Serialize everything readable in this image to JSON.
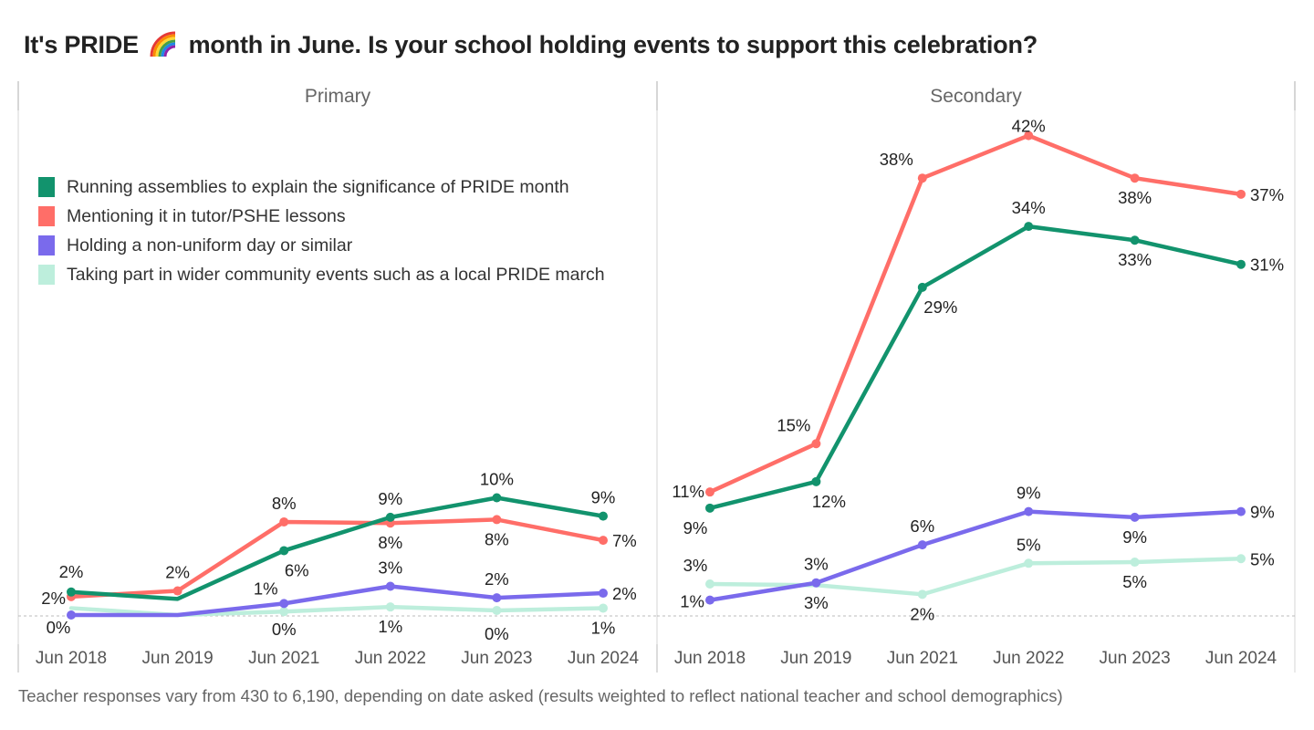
{
  "title": {
    "before": "It's PRIDE",
    "icon": "rainbow-icon",
    "after": "month in June. Is your school holding events to support this celebration?"
  },
  "footer": "Teacher responses vary from 430 to 6,190, depending on date asked (results weighted to reflect national teacher and school demographics)",
  "colors": {
    "assemblies": "#12936d",
    "lessons": "#ff6e68",
    "non_uniform": "#7a6aec",
    "community": "#bdeedc"
  },
  "legend": [
    {
      "key": "assemblies",
      "label": "Running assemblies to explain the significance of PRIDE month"
    },
    {
      "key": "lessons",
      "label": "Mentioning it in tutor/PSHE lessons"
    },
    {
      "key": "non_uniform",
      "label": "Holding a non-uniform day or similar"
    },
    {
      "key": "community",
      "label": "Taking part in wider community events such as a local PRIDE march"
    }
  ],
  "chart_data": [
    {
      "type": "line",
      "title": "Primary",
      "xlabel": "",
      "ylabel": "",
      "categories": [
        "Jun 2018",
        "Jun 2019",
        "Jun 2021",
        "Jun 2022",
        "Jun 2023",
        "Jun 2024"
      ],
      "ylim": [
        0,
        45
      ],
      "grid": false,
      "legend_position": "top-left",
      "series": [
        {
          "key": "assemblies",
          "name": "Running assemblies to explain the significance of PRIDE month",
          "values": [
            2.0,
            1.4,
            5.6,
            8.5,
            10.2,
            8.6
          ],
          "labels": [
            "2%",
            null,
            "6%",
            "9%",
            "10%",
            "9%"
          ],
          "markers": [
            true,
            false,
            true,
            true,
            true,
            true
          ]
        },
        {
          "key": "lessons",
          "name": "Mentioning it in tutor/PSHE lessons",
          "values": [
            1.6,
            2.1,
            8.1,
            8.0,
            8.3,
            6.5
          ],
          "labels": [
            "2%",
            "2%",
            "8%",
            "8%",
            "8%",
            "7%"
          ],
          "markers": [
            true,
            true,
            true,
            true,
            true,
            true
          ]
        },
        {
          "key": "non_uniform",
          "name": "Holding a non-uniform day or similar",
          "values": [
            0.0,
            0.0,
            1.0,
            2.5,
            1.5,
            1.9
          ],
          "labels": [
            "0%",
            null,
            "1%",
            "3%",
            "2%",
            "2%"
          ],
          "markers": [
            true,
            false,
            true,
            true,
            true,
            true
          ]
        },
        {
          "key": "community",
          "name": "Taking part in wider community events such as a local PRIDE march",
          "values": [
            0.6,
            0.0,
            0.3,
            0.7,
            0.4,
            0.6
          ],
          "labels": [
            null,
            null,
            "0%",
            "1%",
            "0%",
            "1%"
          ],
          "markers": [
            false,
            false,
            true,
            true,
            true,
            true
          ]
        }
      ]
    },
    {
      "type": "line",
      "title": "Secondary",
      "xlabel": "",
      "ylabel": "",
      "categories": [
        "Jun 2018",
        "Jun 2019",
        "Jun 2021",
        "Jun 2022",
        "Jun 2023",
        "Jun 2024"
      ],
      "ylim": [
        0,
        45
      ],
      "grid": false,
      "series": [
        {
          "key": "assemblies",
          "name": "Running assemblies to explain the significance of PRIDE month",
          "values": [
            9.3,
            11.6,
            28.5,
            33.8,
            32.6,
            30.5
          ],
          "labels": [
            "9%",
            "12%",
            "29%",
            "34%",
            "33%",
            "31%"
          ],
          "markers": [
            true,
            true,
            true,
            true,
            true,
            true
          ]
        },
        {
          "key": "lessons",
          "name": "Mentioning it in tutor/PSHE lessons",
          "values": [
            10.7,
            14.9,
            38.0,
            41.7,
            38.0,
            36.6
          ],
          "labels": [
            "11%",
            "15%",
            "38%",
            "42%",
            "38%",
            "37%"
          ],
          "markers": [
            true,
            true,
            true,
            true,
            true,
            true
          ]
        },
        {
          "key": "non_uniform",
          "name": "Holding a non-uniform day or similar",
          "values": [
            1.3,
            2.8,
            6.1,
            9.0,
            8.5,
            9.0
          ],
          "labels": [
            "1%",
            "3%",
            "6%",
            "9%",
            "9%",
            "9%"
          ],
          "markers": [
            true,
            true,
            true,
            true,
            true,
            true
          ]
        },
        {
          "key": "community",
          "name": "Taking part in wider community events such as a local PRIDE march",
          "values": [
            2.7,
            2.6,
            1.8,
            4.5,
            4.6,
            4.9
          ],
          "labels": [
            "3%",
            "3%",
            "2%",
            "5%",
            "5%",
            "5%"
          ],
          "markers": [
            true,
            false,
            true,
            true,
            true,
            true
          ]
        }
      ]
    }
  ]
}
